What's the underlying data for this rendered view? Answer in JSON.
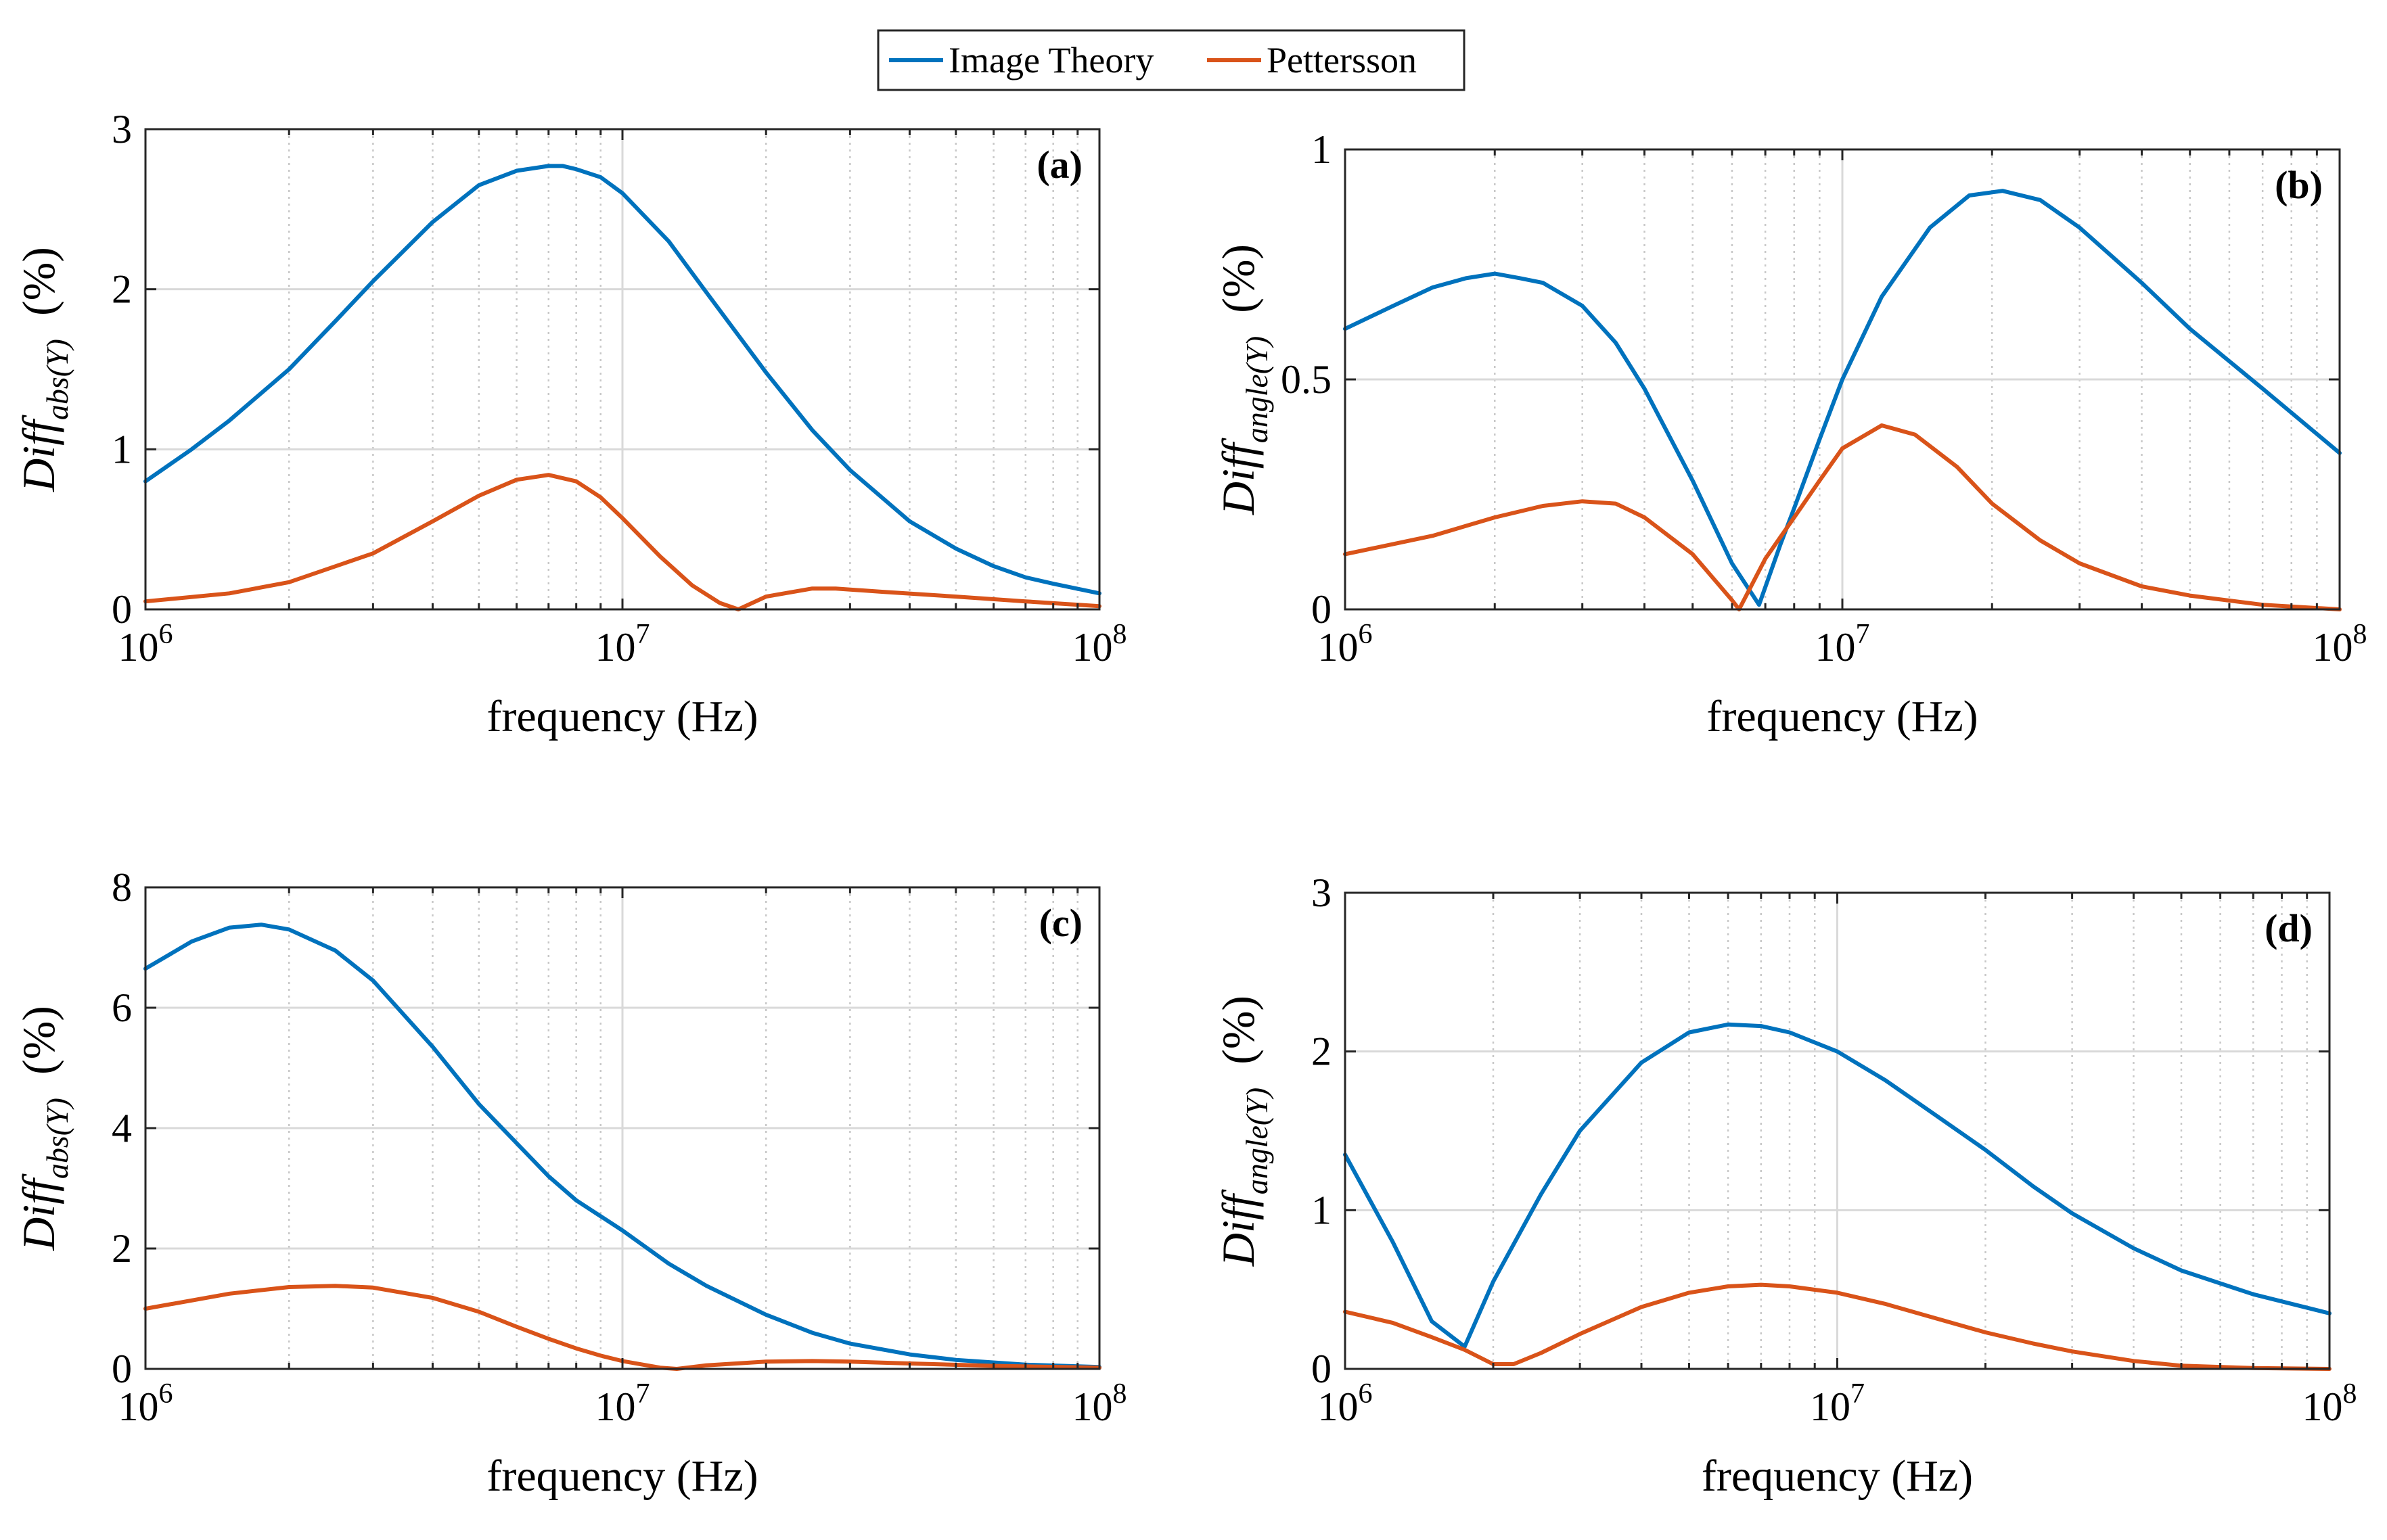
{
  "colors": {
    "image_theory": "#0072BD",
    "pettersson": "#D95319",
    "grid_major": "#d9d9d9",
    "grid_minor": "#c8c8c8",
    "axes": "#262626"
  },
  "legend": {
    "placement": "top-center",
    "entries": [
      "Image Theory",
      "Pettersson"
    ]
  },
  "chart_data": [
    {
      "type": "line",
      "panel": "(a)",
      "xlabel": "frequency (Hz)",
      "ylabel": "Diff_abs(Y) (%)",
      "ylabel_parts": {
        "main": "Diff",
        "sub": "abs(Y)",
        "unit": "(%)"
      },
      "xscale": "log",
      "xlim": [
        1000000,
        100000000
      ],
      "ylim": [
        0,
        3
      ],
      "xticks": [
        1000000,
        10000000,
        100000000
      ],
      "xtick_labels": [
        [
          "10",
          "6"
        ],
        [
          "10",
          "7"
        ],
        [
          "10",
          "8"
        ]
      ],
      "yticks": [
        0,
        1,
        2,
        3
      ],
      "ytick_labels": [
        "0",
        "1",
        "2",
        "3"
      ],
      "grid": "on (major and minor)",
      "series": [
        {
          "name": "Image Theory",
          "x": [
            1000000,
            1250000,
            1500000,
            2000000,
            2500000,
            3000000,
            4000000,
            5000000,
            6000000,
            7000000,
            7500000,
            8000000,
            9000000,
            10000000,
            12500000,
            15000000,
            20000000,
            25000000,
            30000000,
            40000000,
            50000000,
            60000000,
            70000000,
            80000000,
            100000000
          ],
          "y": [
            0.8,
            1.0,
            1.18,
            1.5,
            1.8,
            2.05,
            2.42,
            2.65,
            2.74,
            2.77,
            2.77,
            2.75,
            2.7,
            2.6,
            2.3,
            1.98,
            1.48,
            1.12,
            0.87,
            0.55,
            0.38,
            0.27,
            0.2,
            0.16,
            0.1
          ]
        },
        {
          "name": "Pettersson",
          "x": [
            1000000,
            1500000,
            2000000,
            3000000,
            4000000,
            5000000,
            6000000,
            7000000,
            8000000,
            9000000,
            10000000,
            12000000,
            14000000,
            16000000,
            17500000,
            20000000,
            25000000,
            28000000,
            35000000,
            50000000,
            70000000,
            100000000
          ],
          "y": [
            0.05,
            0.1,
            0.17,
            0.35,
            0.55,
            0.71,
            0.81,
            0.84,
            0.8,
            0.7,
            0.57,
            0.33,
            0.15,
            0.04,
            0.0,
            0.08,
            0.13,
            0.13,
            0.11,
            0.08,
            0.05,
            0.02
          ]
        }
      ]
    },
    {
      "type": "line",
      "panel": "(b)",
      "xlabel": "frequency (Hz)",
      "ylabel": "Diff_angle(Y) (%)",
      "ylabel_parts": {
        "main": "Diff",
        "sub": "angle(Y)",
        "unit": "(%)"
      },
      "xscale": "log",
      "xlim": [
        1000000,
        100000000
      ],
      "ylim": [
        0,
        1
      ],
      "xticks": [
        1000000,
        10000000,
        100000000
      ],
      "xtick_labels": [
        [
          "10",
          "6"
        ],
        [
          "10",
          "7"
        ],
        [
          "10",
          "8"
        ]
      ],
      "yticks": [
        0,
        0.5,
        1
      ],
      "ytick_labels": [
        "0",
        "0.5",
        "1"
      ],
      "grid": "on (major and minor)",
      "series": [
        {
          "name": "Image Theory",
          "x": [
            1000000,
            1250000,
            1500000,
            1750000,
            2000000,
            2250000,
            2500000,
            3000000,
            3500000,
            4000000,
            5000000,
            6000000,
            6800000,
            7500000,
            8000000,
            9000000,
            10000000,
            12000000,
            15000000,
            18000000,
            21000000,
            25000000,
            30000000,
            40000000,
            50000000,
            70000000,
            100000000
          ],
          "y": [
            0.61,
            0.66,
            0.7,
            0.72,
            0.73,
            0.72,
            0.71,
            0.66,
            0.58,
            0.48,
            0.28,
            0.1,
            0.01,
            0.14,
            0.22,
            0.37,
            0.5,
            0.68,
            0.83,
            0.9,
            0.91,
            0.89,
            0.83,
            0.71,
            0.61,
            0.48,
            0.34
          ]
        },
        {
          "name": "Pettersson",
          "x": [
            1000000,
            1500000,
            2000000,
            2500000,
            3000000,
            3500000,
            4000000,
            5000000,
            6000000,
            6200000,
            7000000,
            8000000,
            9000000,
            10000000,
            12000000,
            14000000,
            17000000,
            20000000,
            25000000,
            30000000,
            40000000,
            50000000,
            70000000,
            100000000
          ],
          "y": [
            0.12,
            0.16,
            0.2,
            0.225,
            0.235,
            0.23,
            0.2,
            0.12,
            0.02,
            0.0,
            0.11,
            0.2,
            0.28,
            0.35,
            0.4,
            0.38,
            0.31,
            0.23,
            0.15,
            0.1,
            0.05,
            0.03,
            0.01,
            0.0
          ]
        }
      ]
    },
    {
      "type": "line",
      "panel": "(c)",
      "xlabel": "frequency (Hz)",
      "ylabel": "Diff_abs(Y) (%)",
      "ylabel_parts": {
        "main": "Diff",
        "sub": "abs(Y)",
        "unit": "(%)"
      },
      "xscale": "log",
      "xlim": [
        1000000,
        100000000
      ],
      "ylim": [
        0,
        8
      ],
      "xticks": [
        1000000,
        10000000,
        100000000
      ],
      "xtick_labels": [
        [
          "10",
          "6"
        ],
        [
          "10",
          "7"
        ],
        [
          "10",
          "8"
        ]
      ],
      "yticks": [
        0,
        2,
        4,
        6,
        8
      ],
      "ytick_labels": [
        "0",
        "2",
        "4",
        "6",
        "8"
      ],
      "grid": "on (major and minor)",
      "series": [
        {
          "name": "Image Theory",
          "x": [
            1000000,
            1250000,
            1500000,
            1750000,
            2000000,
            2500000,
            3000000,
            4000000,
            5000000,
            6000000,
            7000000,
            8000000,
            10000000,
            12500000,
            15000000,
            20000000,
            25000000,
            30000000,
            40000000,
            50000000,
            70000000,
            100000000
          ],
          "y": [
            6.65,
            7.1,
            7.33,
            7.38,
            7.3,
            6.95,
            6.45,
            5.35,
            4.4,
            3.75,
            3.2,
            2.8,
            2.3,
            1.75,
            1.38,
            0.9,
            0.6,
            0.42,
            0.24,
            0.15,
            0.07,
            0.03
          ]
        },
        {
          "name": "Pettersson",
          "x": [
            1000000,
            1500000,
            2000000,
            2500000,
            3000000,
            4000000,
            5000000,
            6000000,
            7000000,
            8000000,
            9000000,
            10000000,
            12000000,
            13000000,
            15000000,
            20000000,
            25000000,
            30000000,
            40000000,
            60000000,
            100000000
          ],
          "y": [
            1.0,
            1.25,
            1.36,
            1.38,
            1.35,
            1.18,
            0.95,
            0.7,
            0.5,
            0.34,
            0.22,
            0.13,
            0.02,
            0.0,
            0.06,
            0.12,
            0.13,
            0.12,
            0.09,
            0.05,
            0.02
          ]
        }
      ]
    },
    {
      "type": "line",
      "panel": "(d)",
      "xlabel": "frequency (Hz)",
      "ylabel": "Diff_angle(Y) (%)",
      "ylabel_parts": {
        "main": "Diff",
        "sub": "angle(Y)",
        "unit": "(%)"
      },
      "xscale": "log",
      "xlim": [
        1000000,
        100000000
      ],
      "ylim": [
        0,
        3
      ],
      "xticks": [
        1000000,
        10000000,
        100000000
      ],
      "xtick_labels": [
        [
          "10",
          "6"
        ],
        [
          "10",
          "7"
        ],
        [
          "10",
          "8"
        ]
      ],
      "yticks": [
        0,
        1,
        2,
        3
      ],
      "ytick_labels": [
        "0",
        "1",
        "2",
        "3"
      ],
      "grid": "on (major and minor)",
      "series": [
        {
          "name": "Image Theory",
          "x": [
            1000000,
            1250000,
            1500000,
            1750000,
            2000000,
            2500000,
            3000000,
            4000000,
            5000000,
            6000000,
            7000000,
            8000000,
            10000000,
            12500000,
            15000000,
            20000000,
            25000000,
            30000000,
            40000000,
            50000000,
            70000000,
            100000000
          ],
          "y": [
            1.35,
            0.8,
            0.3,
            0.14,
            0.55,
            1.1,
            1.5,
            1.93,
            2.12,
            2.17,
            2.16,
            2.12,
            2.0,
            1.82,
            1.65,
            1.38,
            1.15,
            0.98,
            0.76,
            0.62,
            0.47,
            0.35
          ]
        },
        {
          "name": "Pettersson",
          "x": [
            1000000,
            1250000,
            1500000,
            1750000,
            2000000,
            2200000,
            2500000,
            3000000,
            4000000,
            5000000,
            6000000,
            7000000,
            8000000,
            10000000,
            12500000,
            15000000,
            20000000,
            25000000,
            30000000,
            40000000,
            50000000,
            70000000,
            100000000
          ],
          "y": [
            0.36,
            0.29,
            0.2,
            0.12,
            0.03,
            0.03,
            0.1,
            0.22,
            0.39,
            0.48,
            0.52,
            0.53,
            0.52,
            0.48,
            0.41,
            0.34,
            0.23,
            0.16,
            0.11,
            0.05,
            0.02,
            0.005,
            0.0
          ]
        }
      ]
    }
  ]
}
